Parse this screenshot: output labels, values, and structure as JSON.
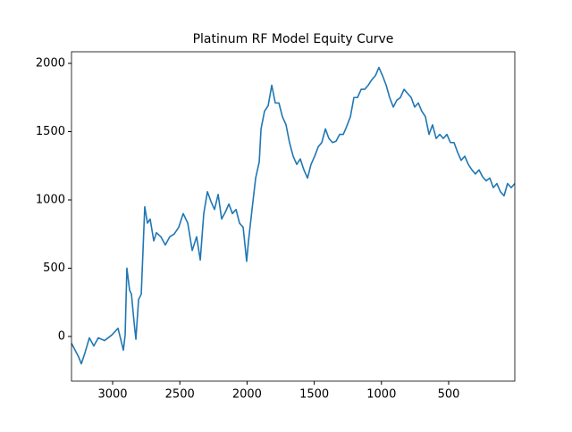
{
  "chart_data": {
    "type": "line",
    "title": "Platinum RF Model Equity Curve",
    "x": [
      3306,
      3253,
      3233,
      3206,
      3173,
      3140,
      3107,
      3060,
      3007,
      2960,
      2920,
      2907,
      2894,
      2874,
      2860,
      2841,
      2827,
      2807,
      2787,
      2774,
      2761,
      2741,
      2721,
      2694,
      2674,
      2641,
      2608,
      2575,
      2542,
      2508,
      2475,
      2441,
      2408,
      2375,
      2348,
      2322,
      2295,
      2269,
      2242,
      2215,
      2189,
      2162,
      2135,
      2109,
      2082,
      2056,
      2029,
      2003,
      1989,
      1963,
      1936,
      1909,
      1896,
      1870,
      1843,
      1816,
      1790,
      1763,
      1737,
      1710,
      1684,
      1657,
      1630,
      1604,
      1577,
      1550,
      1524,
      1497,
      1470,
      1444,
      1417,
      1391,
      1364,
      1338,
      1311,
      1284,
      1258,
      1231,
      1205,
      1178,
      1151,
      1125,
      1098,
      1072,
      1045,
      1019,
      992,
      965,
      939,
      912,
      886,
      859,
      832,
      806,
      779,
      753,
      726,
      700,
      673,
      646,
      620,
      593,
      566,
      540,
      513,
      487,
      460,
      434,
      407,
      380,
      354,
      327,
      301,
      274,
      248,
      221,
      194,
      168,
      141,
      115,
      88,
      62,
      35,
      8
    ],
    "values": [
      -50,
      -150,
      -200,
      -120,
      -10,
      -70,
      -10,
      -30,
      10,
      60,
      -100,
      10,
      500,
      340,
      310,
      110,
      -20,
      270,
      310,
      630,
      950,
      830,
      860,
      700,
      760,
      730,
      670,
      730,
      750,
      800,
      900,
      830,
      630,
      730,
      560,
      900,
      1060,
      990,
      930,
      1040,
      860,
      910,
      970,
      900,
      930,
      830,
      800,
      550,
      700,
      930,
      1160,
      1280,
      1520,
      1650,
      1690,
      1840,
      1710,
      1710,
      1610,
      1550,
      1420,
      1320,
      1260,
      1300,
      1220,
      1160,
      1260,
      1320,
      1390,
      1420,
      1520,
      1450,
      1420,
      1430,
      1480,
      1480,
      1540,
      1610,
      1750,
      1750,
      1810,
      1810,
      1840,
      1880,
      1910,
      1970,
      1910,
      1840,
      1750,
      1680,
      1730,
      1750,
      1810,
      1780,
      1750,
      1680,
      1710,
      1650,
      1610,
      1480,
      1550,
      1450,
      1480,
      1450,
      1480,
      1420,
      1420,
      1350,
      1290,
      1320,
      1260,
      1220,
      1190,
      1220,
      1170,
      1140,
      1160,
      1090,
      1120,
      1060,
      1030,
      1120,
      1090,
      1120
    ],
    "color": "#1f77b4",
    "xlim": [
      3306,
      8
    ],
    "ylim": [
      -327,
      2085
    ],
    "xticks": [
      3000,
      2500,
      2000,
      1500,
      1000,
      500
    ],
    "yticks": [
      0,
      500,
      1000,
      1500,
      2000
    ]
  }
}
